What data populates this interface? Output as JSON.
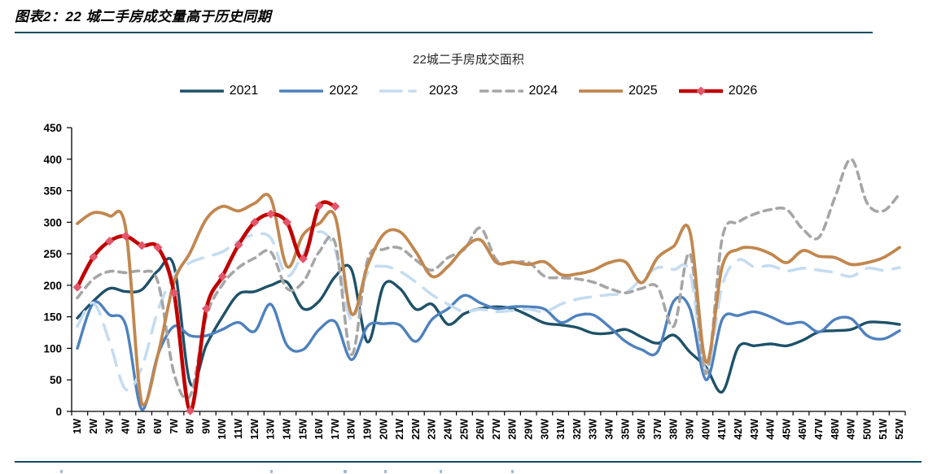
{
  "header": {
    "title": "图表2：22 城二手房成交量高于历史同期"
  },
  "chart_data": {
    "type": "line",
    "title": "22城二手房成交面积",
    "xlabel": "",
    "ylabel": "",
    "ylim": [
      0,
      450
    ],
    "y_ticks": [
      0,
      50,
      100,
      150,
      200,
      250,
      300,
      350,
      400,
      450
    ],
    "grid": false,
    "legend_position": "top-center",
    "x_labels": [
      "1W",
      "2W",
      "3W",
      "4W",
      "5W",
      "6W",
      "7W",
      "8W",
      "9W",
      "10W",
      "11W",
      "12W",
      "13W",
      "14W",
      "15W",
      "16W",
      "17W",
      "18W",
      "19W",
      "20W",
      "21W",
      "22W",
      "23W",
      "24W",
      "25W",
      "26W",
      "27W",
      "28W",
      "29W",
      "30W",
      "31W",
      "32W",
      "33W",
      "34W",
      "35W",
      "36W",
      "37W",
      "38W",
      "39W",
      "40W",
      "41W",
      "42W",
      "43W",
      "44W",
      "45W",
      "46W",
      "47W",
      "48W",
      "49W",
      "50W",
      "51W",
      "52W"
    ],
    "series": [
      {
        "name": "2021",
        "color": "#1E5168",
        "style": "solid",
        "width": 3.4,
        "values": [
          148,
          175,
          195,
          190,
          193,
          223,
          230,
          45,
          105,
          150,
          186,
          190,
          200,
          205,
          163,
          175,
          214,
          225,
          110,
          200,
          195,
          162,
          170,
          138,
          155,
          163,
          166,
          163,
          152,
          140,
          137,
          133,
          124,
          124,
          130,
          118,
          108,
          121,
          94,
          70,
          31,
          102,
          104,
          107,
          104,
          113,
          126,
          128,
          130,
          141,
          141,
          138
        ]
      },
      {
        "name": "2022",
        "color": "#4E81BD",
        "style": "solid",
        "width": 3.4,
        "values": [
          100,
          172,
          153,
          137,
          3,
          90,
          135,
          120,
          120,
          130,
          141,
          127,
          170,
          105,
          98,
          130,
          142,
          82,
          135,
          139,
          137,
          111,
          146,
          163,
          184,
          172,
          163,
          166,
          166,
          162,
          141,
          152,
          153,
          134,
          111,
          98,
          95,
          175,
          163,
          50,
          146,
          152,
          158,
          150,
          139,
          141,
          126,
          146,
          147,
          120,
          115,
          128
        ]
      },
      {
        "name": "2023",
        "color": "#C5DCF0",
        "style": "dashed",
        "dash": "20 13",
        "width": 3.6,
        "values": [
          135,
          172,
          110,
          35,
          70,
          160,
          215,
          236,
          245,
          253,
          270,
          280,
          275,
          215,
          250,
          285,
          255,
          145,
          220,
          230,
          222,
          205,
          185,
          170,
          158,
          162,
          158,
          160,
          162,
          158,
          170,
          178,
          182,
          185,
          188,
          210,
          228,
          225,
          220,
          65,
          200,
          240,
          229,
          231,
          223,
          227,
          224,
          220,
          214,
          227,
          224,
          228
        ]
      },
      {
        "name": "2024",
        "color": "#A6A6A6",
        "style": "dashed",
        "dash": "9 7",
        "width": 3.6,
        "values": [
          180,
          210,
          222,
          220,
          222,
          205,
          60,
          25,
          150,
          201,
          228,
          243,
          253,
          195,
          205,
          253,
          266,
          90,
          240,
          257,
          259,
          240,
          224,
          244,
          257,
          291,
          240,
          236,
          236,
          214,
          212,
          210,
          205,
          195,
          188,
          195,
          197,
          135,
          250,
          60,
          275,
          300,
          313,
          320,
          320,
          289,
          276,
          340,
          400,
          330,
          318,
          345
        ]
      },
      {
        "name": "2025",
        "color": "#C1874F",
        "style": "solid",
        "width": 3.8,
        "values": [
          298,
          315,
          310,
          290,
          12,
          90,
          205,
          252,
          305,
          325,
          318,
          330,
          338,
          230,
          280,
          298,
          308,
          155,
          231,
          281,
          285,
          253,
          214,
          230,
          259,
          272,
          236,
          237,
          233,
          237,
          217,
          218,
          224,
          236,
          237,
          204,
          244,
          262,
          285,
          78,
          230,
          257,
          259,
          250,
          236,
          255,
          246,
          244,
          233,
          236,
          244,
          260
        ]
      },
      {
        "name": "2026",
        "color": "#C00000",
        "style": "solid",
        "width": 4.6,
        "marker": "diamond",
        "marker_color": "#E4566A",
        "values": [
          197,
          245,
          270,
          278,
          263,
          260,
          188,
          1,
          163,
          214,
          264,
          300,
          313,
          300,
          242,
          326,
          325,
          null,
          null,
          null,
          null,
          null,
          null,
          null,
          null,
          null,
          null,
          null,
          null,
          null,
          null,
          null,
          null,
          null,
          null,
          null,
          null,
          null,
          null,
          null,
          null,
          null,
          null,
          null,
          null,
          null,
          null,
          null,
          null,
          null,
          null,
          null
        ]
      }
    ]
  }
}
